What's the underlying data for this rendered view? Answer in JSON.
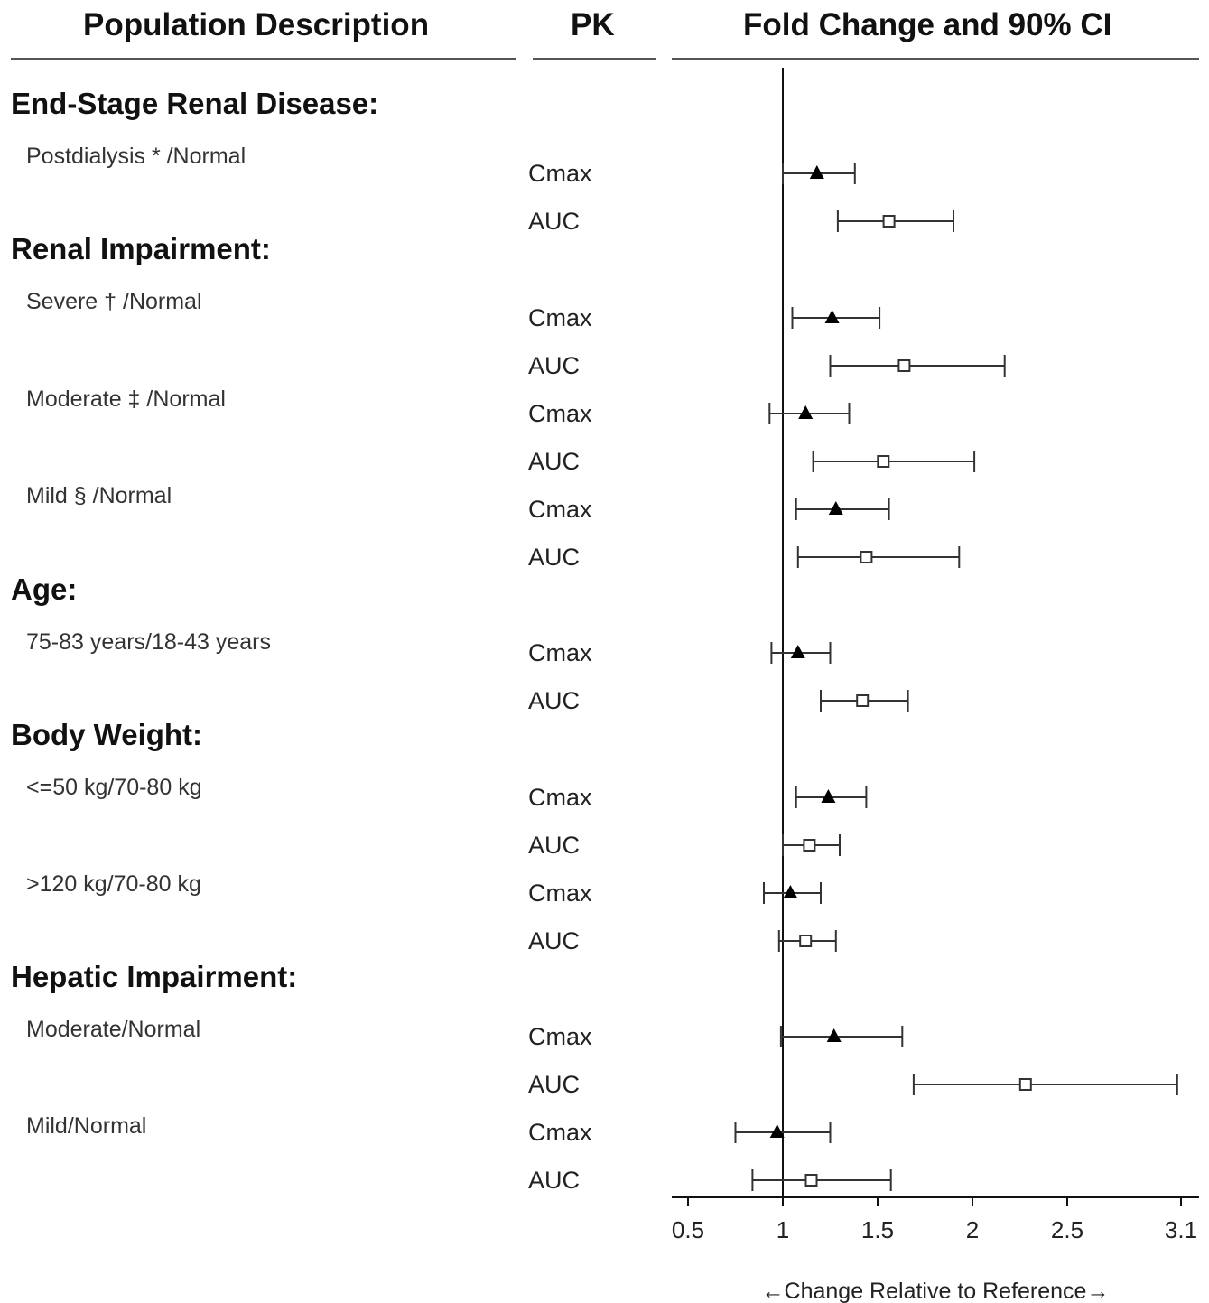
{
  "headers": {
    "population": "Population Description",
    "pk": "PK",
    "fold": "Fold Change and 90% CI"
  },
  "sections": [
    "End-Stage Renal Disease:",
    "Renal Impairment:",
    "Age:",
    "Body Weight:",
    "Hepatic Impairment:"
  ],
  "subgroups": [
    "Postdialysis * /Normal",
    "Severe † /Normal",
    "Moderate ‡ /Normal",
    "Mild § /Normal",
    "75-83 years/18-43 years",
    "<=50 kg/70-80 kg",
    ">120 kg/70-80 kg",
    "Moderate/Normal",
    "Mild/Normal"
  ],
  "pk_labels": [
    "Cmax",
    "AUC",
    "Cmax",
    "AUC",
    "Cmax",
    "AUC",
    "Cmax",
    "AUC",
    "Cmax",
    "AUC",
    "Cmax",
    "AUC",
    "Cmax",
    "AUC",
    "Cmax",
    "AUC",
    "Cmax",
    "AUC"
  ],
  "chart_data": {
    "type": "forest",
    "xlabel": "←Change Relative to Reference→",
    "xlim": [
      0.5,
      3.1
    ],
    "xticks": [
      0.5,
      1,
      1.5,
      2,
      2.5,
      3.1
    ],
    "xtick_labels": [
      "0.5",
      "1",
      "1.5",
      "2",
      "2.5",
      "3.1"
    ],
    "reference_line": 1,
    "marker_styles": {
      "Cmax": "filled-triangle",
      "AUC": "open-square"
    },
    "rows": [
      {
        "group": "Postdialysis * /Normal",
        "pk": "Cmax",
        "estimate": 1.18,
        "lower": 1.0,
        "upper": 1.38
      },
      {
        "group": "Postdialysis * /Normal",
        "pk": "AUC",
        "estimate": 1.56,
        "lower": 1.29,
        "upper": 1.9
      },
      {
        "group": "Severe † /Normal",
        "pk": "Cmax",
        "estimate": 1.26,
        "lower": 1.05,
        "upper": 1.51
      },
      {
        "group": "Severe † /Normal",
        "pk": "AUC",
        "estimate": 1.64,
        "lower": 1.25,
        "upper": 2.17
      },
      {
        "group": "Moderate ‡ /Normal",
        "pk": "Cmax",
        "estimate": 1.12,
        "lower": 0.93,
        "upper": 1.35
      },
      {
        "group": "Moderate ‡ /Normal",
        "pk": "AUC",
        "estimate": 1.53,
        "lower": 1.16,
        "upper": 2.01
      },
      {
        "group": "Mild § /Normal",
        "pk": "Cmax",
        "estimate": 1.28,
        "lower": 1.07,
        "upper": 1.56
      },
      {
        "group": "Mild § /Normal",
        "pk": "AUC",
        "estimate": 1.44,
        "lower": 1.08,
        "upper": 1.93
      },
      {
        "group": "75-83 years/18-43 years",
        "pk": "Cmax",
        "estimate": 1.08,
        "lower": 0.94,
        "upper": 1.25
      },
      {
        "group": "75-83 years/18-43 years",
        "pk": "AUC",
        "estimate": 1.42,
        "lower": 1.2,
        "upper": 1.66
      },
      {
        "group": "<=50 kg/70-80 kg",
        "pk": "Cmax",
        "estimate": 1.24,
        "lower": 1.07,
        "upper": 1.44
      },
      {
        "group": "<=50 kg/70-80 kg",
        "pk": "AUC",
        "estimate": 1.14,
        "lower": 1.0,
        "upper": 1.3
      },
      {
        "group": ">120 kg/70-80 kg",
        "pk": "Cmax",
        "estimate": 1.04,
        "lower": 0.9,
        "upper": 1.2
      },
      {
        "group": ">120 kg/70-80 kg",
        "pk": "AUC",
        "estimate": 1.12,
        "lower": 0.98,
        "upper": 1.28
      },
      {
        "group": "Moderate/Normal",
        "pk": "Cmax",
        "estimate": 1.27,
        "lower": 0.99,
        "upper": 1.63
      },
      {
        "group": "Moderate/Normal",
        "pk": "AUC",
        "estimate": 2.28,
        "lower": 1.69,
        "upper": 3.08
      },
      {
        "group": "Mild/Normal",
        "pk": "Cmax",
        "estimate": 0.97,
        "lower": 0.75,
        "upper": 1.25
      },
      {
        "group": "Mild/Normal",
        "pk": "AUC",
        "estimate": 1.15,
        "lower": 0.84,
        "upper": 1.57
      }
    ]
  }
}
